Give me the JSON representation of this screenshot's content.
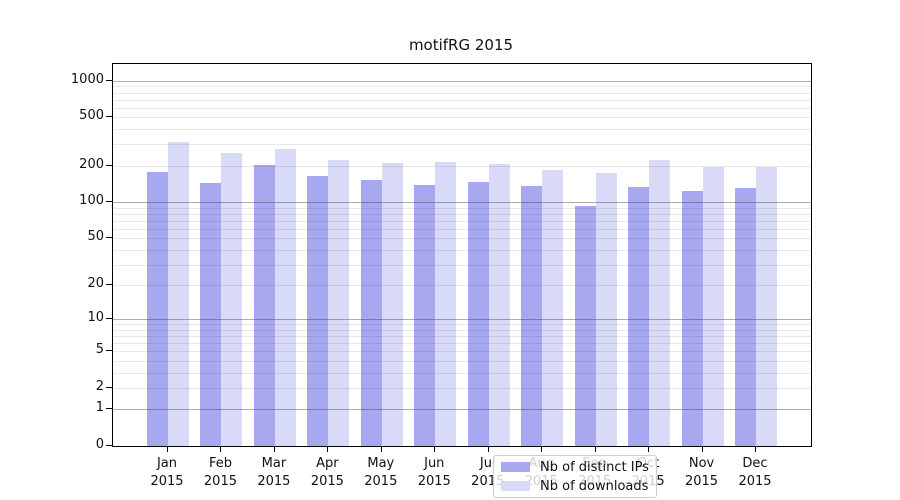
{
  "title": "motifRG 2015",
  "chart_data": {
    "type": "bar",
    "title": "motifRG 2015",
    "y_scale": "log10(1+x)",
    "grid": true,
    "categories": [
      "Jan",
      "Feb",
      "Mar",
      "Apr",
      "May",
      "Jun",
      "Jul",
      "Aug",
      "Sep",
      "Oct",
      "Nov",
      "Dec"
    ],
    "category_year": "2015",
    "series": [
      {
        "name": "Nb of distinct IPs",
        "color": "#a8a8f0",
        "values": [
          178,
          145,
          203,
          165,
          153,
          138,
          148,
          136,
          92,
          134,
          124,
          132
        ]
      },
      {
        "name": "Nb of downloads",
        "color": "#d9d9f8",
        "values": [
          315,
          255,
          275,
          222,
          211,
          213,
          205,
          183,
          175,
          223,
          197,
          194
        ]
      }
    ],
    "y_axis": {
      "tick_labels": [
        1000,
        500,
        200,
        100,
        50,
        20,
        10,
        5,
        2,
        1,
        0
      ],
      "major_gridlines": [
        1,
        10,
        100,
        1000
      ],
      "minor_gridlines": [
        2,
        3,
        4,
        5,
        6,
        7,
        8,
        9,
        20,
        30,
        40,
        50,
        60,
        70,
        80,
        90,
        200,
        300,
        400,
        500,
        600,
        700,
        800,
        900
      ],
      "top_value": 1377,
      "ymin": 0
    },
    "legend": {
      "position": "bottom-center",
      "entries": [
        "Nb of distinct IPs",
        "Nb of downloads"
      ]
    },
    "colors": {
      "distinct_ips": "#a8a8f0",
      "downloads": "#d9d9f8",
      "major_grid": "#ababab",
      "minor_grid": "#e8e8e8",
      "spine": "#000000"
    }
  }
}
